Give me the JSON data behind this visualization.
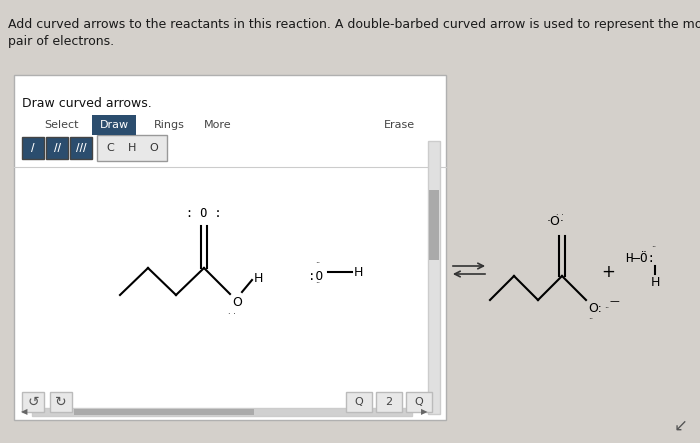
{
  "bg_color": "#d4d0cb",
  "title_line1": "Add curved arrows to the reactants in this reaction. A double-barbed curved arrow is used to represent the movement of a",
  "title_line2": "pair of electrons.",
  "title_fontsize": 9.0,
  "title_color": "#1a1a1a",
  "box_label": "Draw curved arrows.",
  "panel_bg": "#f2f2f0",
  "panel_edge": "#b0b0b0",
  "draw_btn_color": "#2b4d6e",
  "white_bg": "#ffffff",
  "scrollbar_color": "#aaaaaa",
  "divider_color": "#999999"
}
